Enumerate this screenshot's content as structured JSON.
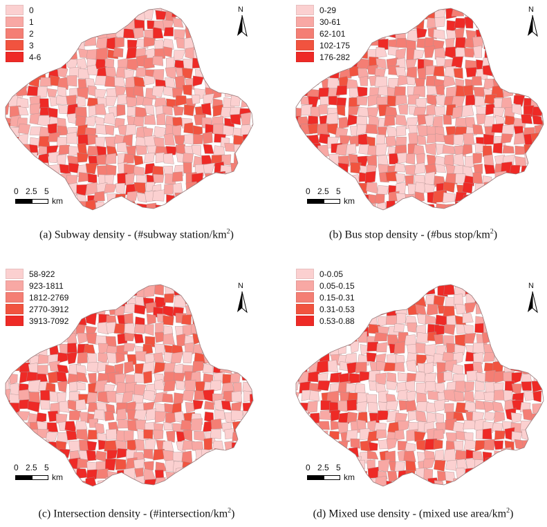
{
  "palette": [
    "#fbd0d0",
    "#f8a8a4",
    "#f47e74",
    "#f1533f",
    "#ee2a26"
  ],
  "border_color": "#b08f8f",
  "scale": {
    "ticks": [
      "0",
      "2.5",
      "5"
    ],
    "unit": "km"
  },
  "north_label": "N",
  "panels": [
    {
      "id": "a",
      "legend": [
        "0",
        "1",
        "2",
        "3",
        "4-6"
      ],
      "caption_main": "(a) Subway density - (#subway station/km",
      "caption_sup": "2",
      "caption_end": ")",
      "seed": 11,
      "weights": [
        0.35,
        0.28,
        0.18,
        0.11,
        0.08
      ]
    },
    {
      "id": "b",
      "legend": [
        "0-29",
        "30-61",
        "62-101",
        "102-175",
        "176-282"
      ],
      "caption_main": "(b) Bus stop density  - (#bus stop/km",
      "caption_sup": "2",
      "caption_end": ")",
      "seed": 23,
      "weights": [
        0.3,
        0.28,
        0.22,
        0.12,
        0.08
      ]
    },
    {
      "id": "c",
      "legend": [
        "58-922",
        "923-1811",
        "1812-2769",
        "2770-3912",
        "3913-7092"
      ],
      "caption_main": "(c) Intersection density - (#intersection/km",
      "caption_sup": "2",
      "caption_end": ")",
      "seed": 37,
      "weights": [
        0.32,
        0.26,
        0.22,
        0.13,
        0.07
      ]
    },
    {
      "id": "d",
      "legend": [
        "0-0.05",
        "0.05-0.15",
        "0.15-0.31",
        "0.31-0.53",
        "0.53-0.88"
      ],
      "caption_main": "(d) Mixed use density - (mixed use area/km",
      "caption_sup": "2",
      "caption_end": ")",
      "seed": 53,
      "weights": [
        0.38,
        0.26,
        0.18,
        0.11,
        0.07
      ]
    }
  ]
}
